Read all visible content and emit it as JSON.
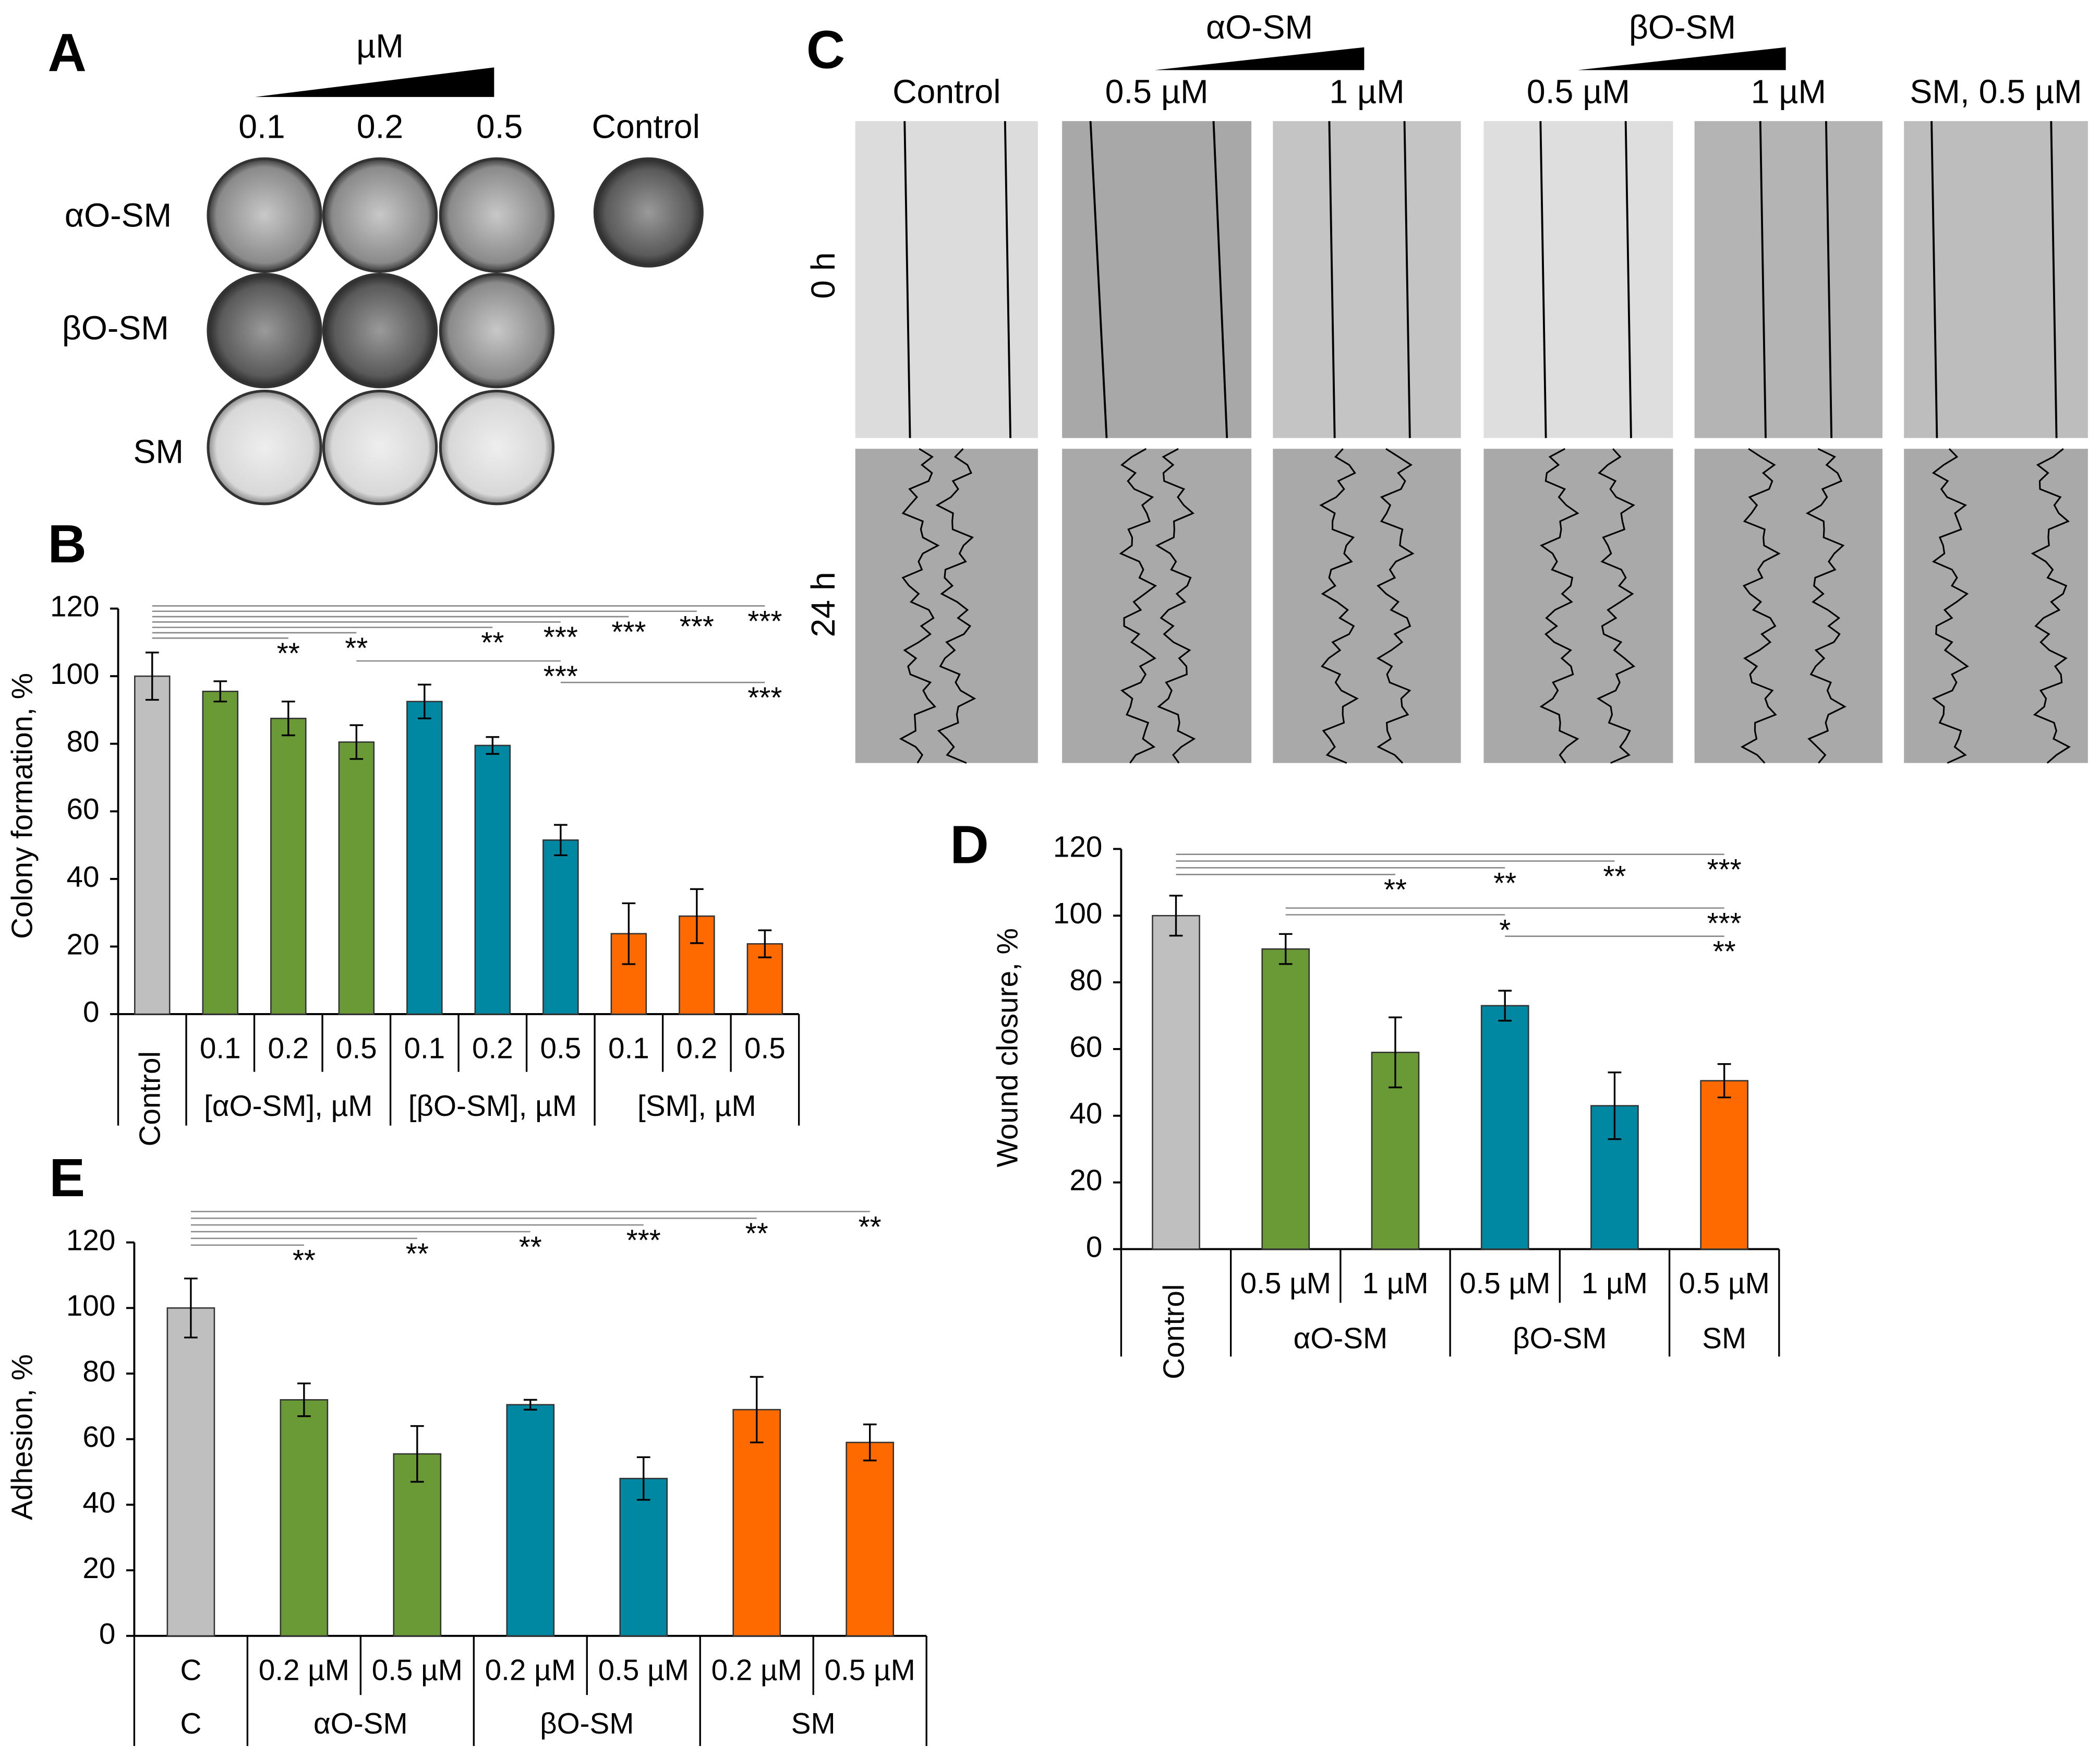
{
  "panel_a": {
    "label": "A",
    "unit": "µM",
    "concentrations": [
      "0.1",
      "0.2",
      "0.5"
    ],
    "control": "Control",
    "rows": [
      "αO-SM",
      "βO-SM",
      "SM"
    ]
  },
  "panel_c": {
    "label": "C",
    "groups": [
      "αO-SM",
      "βO-SM"
    ],
    "columns": [
      "Control",
      "0.5 µM",
      "1 µM",
      "0.5 µM",
      "1 µM",
      "SM, 0.5 µM"
    ],
    "rows": [
      "0 h",
      "24 h"
    ]
  },
  "chart_data": [
    {
      "type": "bar",
      "label": "B",
      "ylabel": "Colony formation, %",
      "categories": [
        "Control",
        "0.1",
        "0.2",
        "0.5",
        "0.1",
        "0.2",
        "0.5",
        "0.1",
        "0.2",
        "0.5"
      ],
      "groups": [
        "[αO-SM], µM",
        "[βO-SM], µM",
        "[SM], µM"
      ],
      "values": [
        100,
        95.5,
        87.5,
        80.5,
        92.5,
        79.5,
        51.5,
        23.8,
        29,
        20.8
      ],
      "errors": [
        7,
        3,
        5,
        5,
        5,
        2.5,
        4.5,
        9,
        8,
        4
      ],
      "colors": [
        "#bfbfbf",
        "#6a9a35",
        "#6a9a35",
        "#6a9a35",
        "#0088a3",
        "#0088a3",
        "#0088a3",
        "#ff6a00",
        "#ff6a00",
        "#ff6a00"
      ],
      "ylim": [
        0,
        120
      ],
      "yticks": [
        0,
        20,
        40,
        60,
        80,
        100,
        120
      ],
      "significance": [
        "***",
        "***",
        "***",
        "***",
        "**",
        "**",
        "**",
        "***",
        "***"
      ]
    },
    {
      "type": "bar",
      "label": "D",
      "ylabel": "Wound closure, %",
      "categories": [
        "Control",
        "0.5 µM",
        "1 µM",
        "0.5 µM",
        "1 µM",
        "0.5 µM"
      ],
      "groups": [
        "αO-SM",
        "βO-SM",
        "SM"
      ],
      "values": [
        100,
        90,
        59,
        73,
        43,
        50.5
      ],
      "errors": [
        6,
        4.5,
        10.5,
        4.5,
        10,
        5
      ],
      "colors": [
        "#bfbfbf",
        "#6a9a35",
        "#6a9a35",
        "#0088a3",
        "#0088a3",
        "#ff6a00"
      ],
      "ylim": [
        0,
        120
      ],
      "yticks": [
        0,
        20,
        40,
        60,
        80,
        100,
        120
      ],
      "significance": [
        "***",
        "**",
        "**",
        "**",
        "***",
        "*",
        "**"
      ]
    },
    {
      "type": "bar",
      "label": "E",
      "ylabel": "Adhesion, %",
      "categories": [
        "C",
        "0.2 µM",
        "0.5 µM",
        "0.2 µM",
        "0.5 µM",
        "0.2 µM",
        "0.5 µM"
      ],
      "groups": [
        "C",
        "αO-SM",
        "βO-SM",
        "SM"
      ],
      "values": [
        100,
        72,
        55.5,
        70.5,
        48,
        69,
        59
      ],
      "errors": [
        9,
        5,
        8.5,
        1.5,
        6.5,
        10,
        5.5
      ],
      "colors": [
        "#bfbfbf",
        "#6a9a35",
        "#6a9a35",
        "#0088a3",
        "#0088a3",
        "#ff6a00",
        "#ff6a00"
      ],
      "ylim": [
        0,
        120
      ],
      "yticks": [
        0,
        20,
        40,
        60,
        80,
        100,
        120
      ],
      "significance": [
        "**",
        "**",
        "***",
        "**",
        "**",
        "**"
      ]
    }
  ]
}
